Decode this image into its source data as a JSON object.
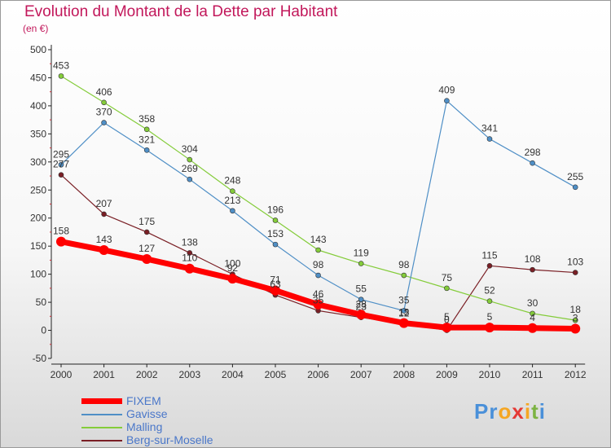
{
  "title": "Evolution du Montant de la Dette par Habitant",
  "unit_label": "(en €)",
  "logo": [
    "P",
    "r",
    "o",
    "x",
    "i",
    "t",
    "i"
  ],
  "logo_colors": [
    "#4a90d9",
    "#4a90d9",
    "#f5a623",
    "#e53935",
    "#f5a623",
    "#7cb342",
    "#4a90d9"
  ],
  "chart_data": {
    "type": "line",
    "x": [
      "2000",
      "2001",
      "2002",
      "2003",
      "2004",
      "2005",
      "2006",
      "2007",
      "2008",
      "2009",
      "2010",
      "2011",
      "2012"
    ],
    "ylim": [
      -50,
      500
    ],
    "yticks": [
      "-50",
      "0",
      "50",
      "100",
      "150",
      "200",
      "250",
      "300",
      "350",
      "400",
      "450",
      "500"
    ],
    "grid": false,
    "legend": "bottom-left",
    "series": [
      {
        "name": "FIXEM",
        "color": "#ff0000",
        "values": [
          158,
          143,
          127,
          110,
          92,
          71,
          46,
          28,
          13,
          5,
          5,
          4,
          3
        ],
        "labels": [
          "158",
          "143",
          "127",
          "110",
          "92",
          "71",
          "46",
          "28",
          "13",
          "5",
          "5",
          "4",
          "3"
        ]
      },
      {
        "name": "Gavisse",
        "color": "#4f8fc6",
        "values": [
          295,
          370,
          321,
          269,
          213,
          153,
          98,
          55,
          35,
          409,
          341,
          298,
          255
        ],
        "labels": [
          "295",
          "370",
          "321",
          "269",
          "213",
          "153",
          "98",
          "55",
          "35",
          "409",
          "341",
          "298",
          "255"
        ]
      },
      {
        "name": "Malling",
        "color": "#84cc3a",
        "values": [
          453,
          406,
          358,
          304,
          248,
          196,
          143,
          119,
          98,
          75,
          52,
          30,
          18
        ],
        "labels": [
          "453",
          "406",
          "358",
          "304",
          "248",
          "196",
          "143",
          "119",
          "98",
          "75",
          "52",
          "30",
          "18"
        ]
      },
      {
        "name": "Berg-sur-Moselle",
        "color": "#7a1f25",
        "values": [
          277,
          207,
          175,
          138,
          100,
          63,
          35,
          23,
          12,
          0,
          115,
          108,
          103
        ],
        "labels": [
          "277",
          "207",
          "175",
          "138",
          "100",
          "63",
          "35",
          "23",
          "12",
          "0",
          "115",
          "108",
          "103"
        ]
      }
    ]
  }
}
